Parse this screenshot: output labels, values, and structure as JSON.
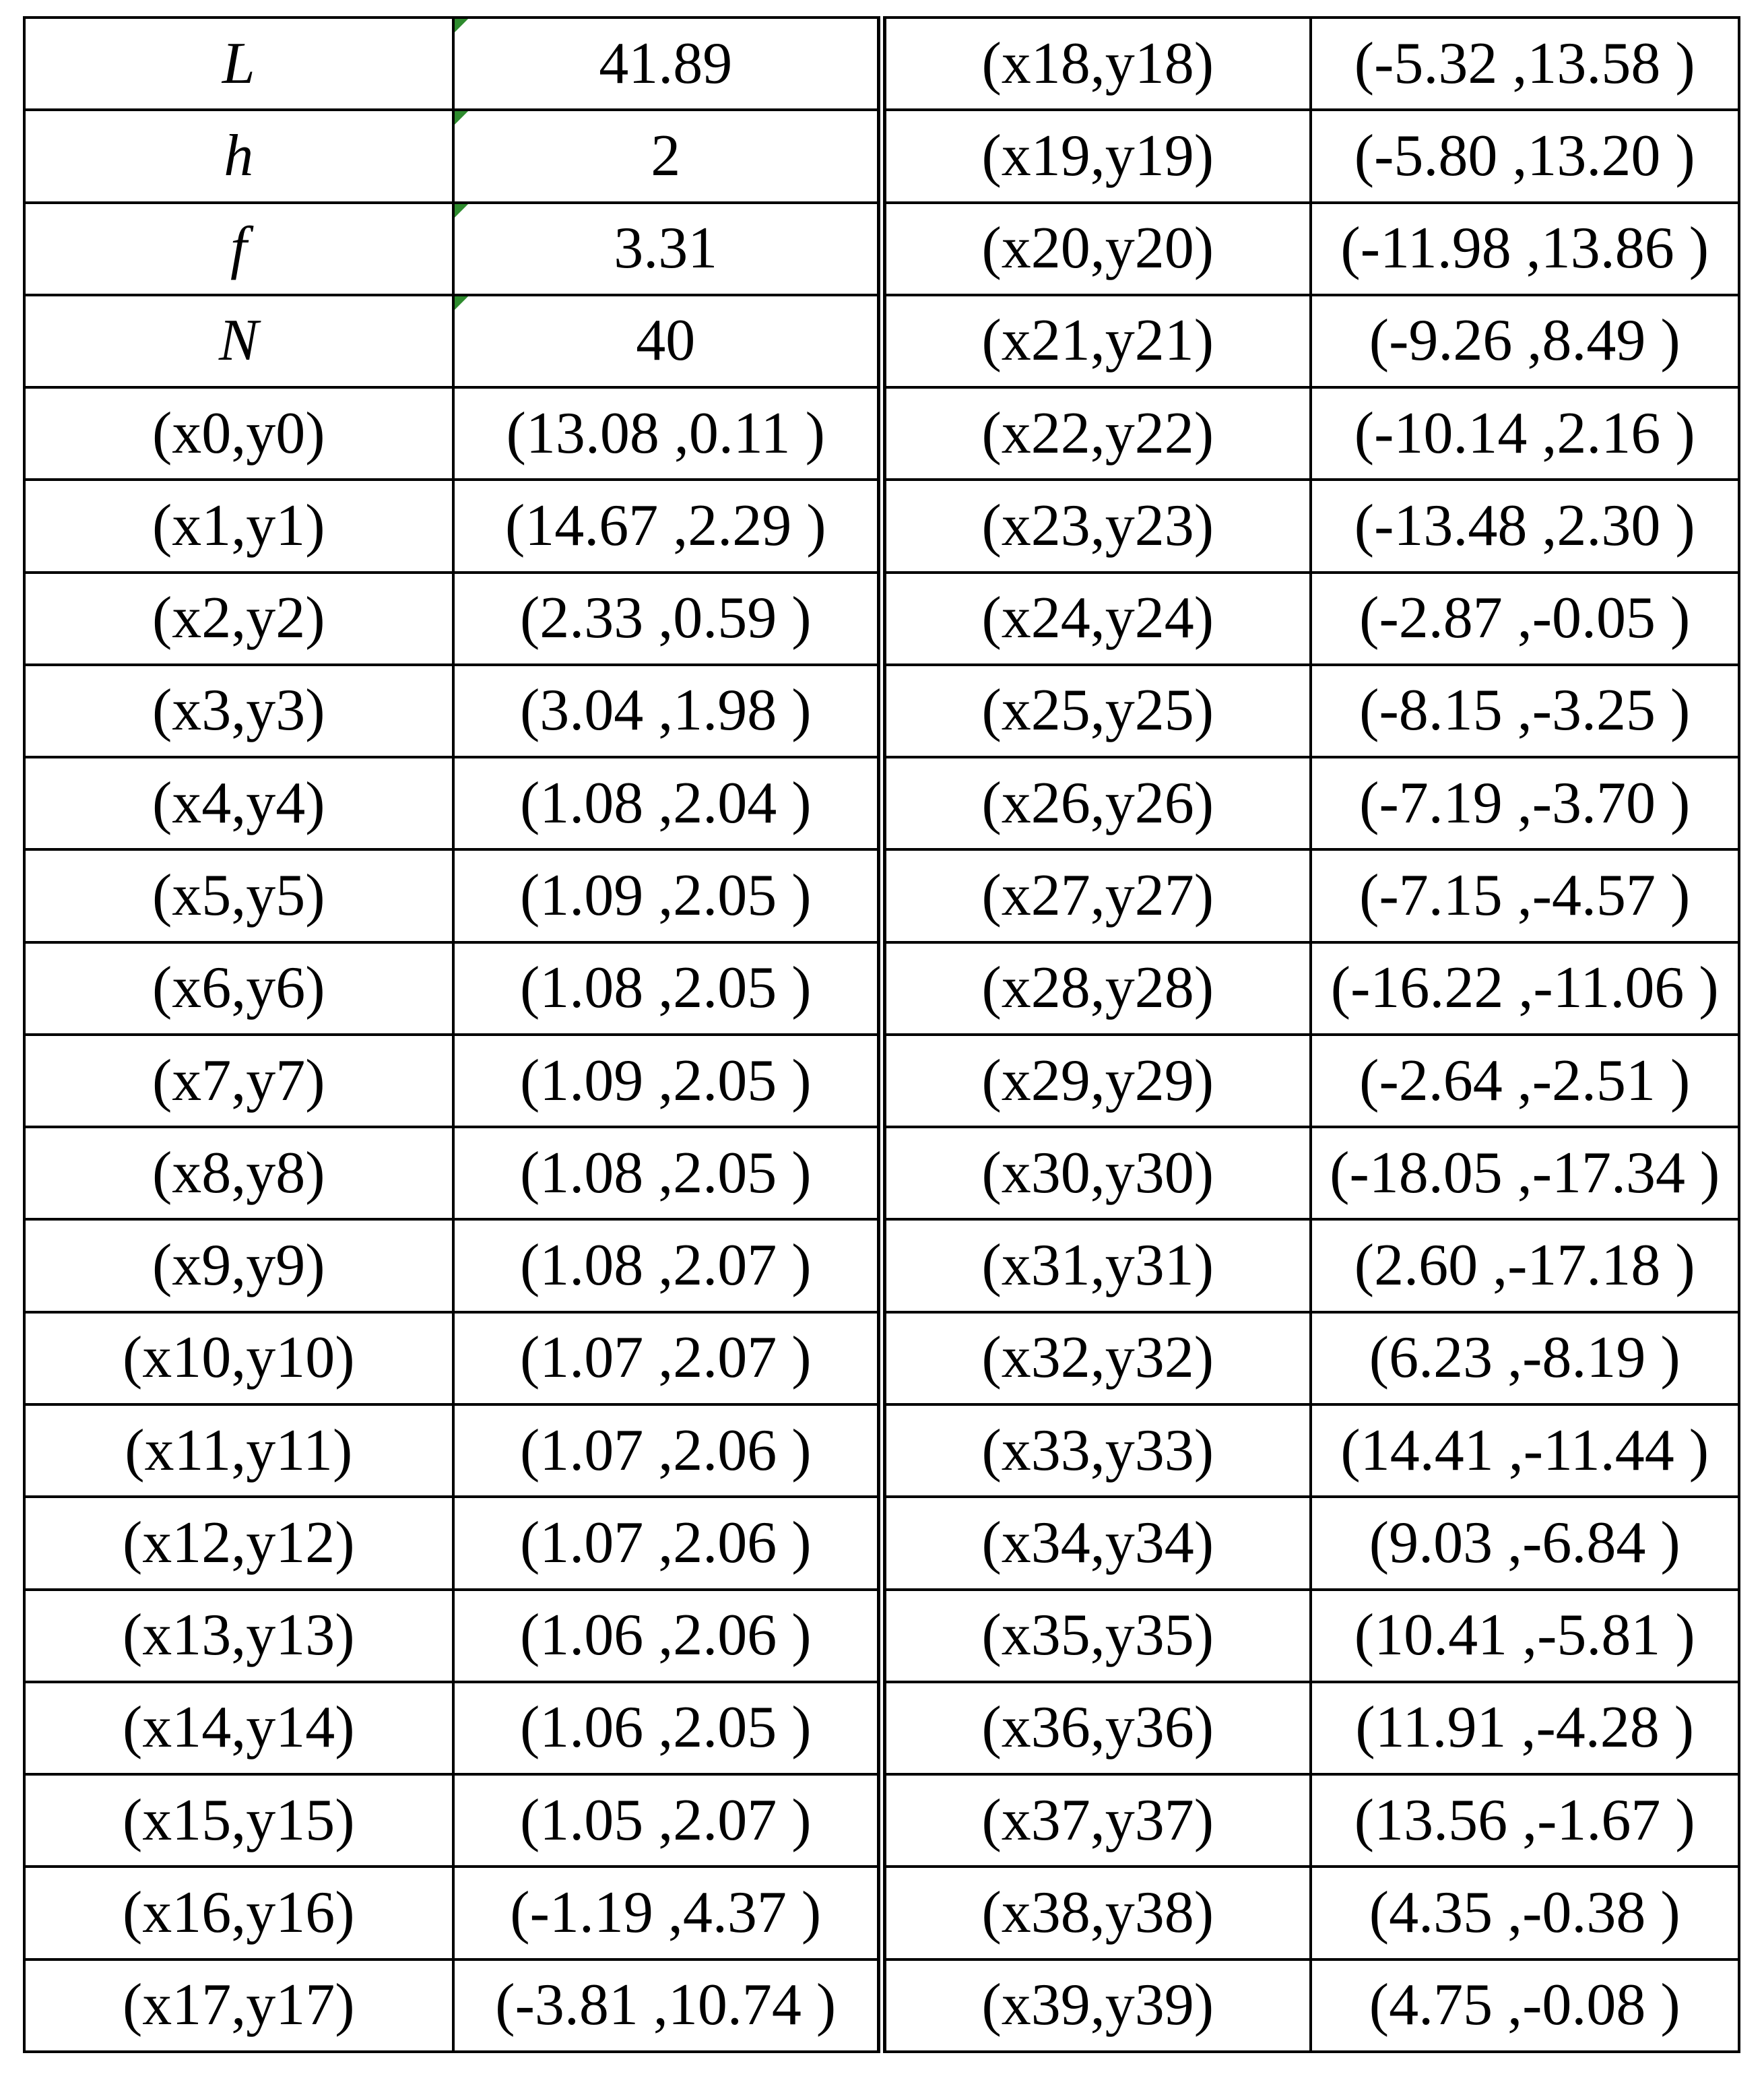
{
  "table": {
    "rows": [
      [
        "L",
        "41.89",
        "(x18,y18)",
        "(-5.32 ,13.58 )"
      ],
      [
        "h",
        "2",
        "(x19,y19)",
        "(-5.80 ,13.20 )"
      ],
      [
        "f",
        "3.31",
        "(x20,y20)",
        "(-11.98 ,13.86 )"
      ],
      [
        "N",
        "40",
        "(x21,y21)",
        "(-9.26 ,8.49 )"
      ],
      [
        "(x0,y0)",
        "(13.08 ,0.11 )",
        "(x22,y22)",
        "(-10.14 ,2.16 )"
      ],
      [
        "(x1,y1)",
        "(14.67 ,2.29 )",
        "(x23,y23)",
        "(-13.48 ,2.30 )"
      ],
      [
        "(x2,y2)",
        "(2.33 ,0.59 )",
        "(x24,y24)",
        "(-2.87 ,-0.05 )"
      ],
      [
        "(x3,y3)",
        "(3.04 ,1.98 )",
        "(x25,y25)",
        "(-8.15 ,-3.25 )"
      ],
      [
        "(x4,y4)",
        "(1.08 ,2.04 )",
        "(x26,y26)",
        "(-7.19 ,-3.70 )"
      ],
      [
        "(x5,y5)",
        "(1.09 ,2.05 )",
        "(x27,y27)",
        "(-7.15 ,-4.57 )"
      ],
      [
        "(x6,y6)",
        "(1.08 ,2.05 )",
        "(x28,y28)",
        "(-16.22 ,-11.06 )"
      ],
      [
        "(x7,y7)",
        "(1.09 ,2.05 )",
        "(x29,y29)",
        "(-2.64 ,-2.51 )"
      ],
      [
        "(x8,y8)",
        "(1.08 ,2.05 )",
        "(x30,y30)",
        "(-18.05 ,-17.34 )"
      ],
      [
        "(x9,y9)",
        "(1.08 ,2.07 )",
        "(x31,y31)",
        "(2.60 ,-17.18 )"
      ],
      [
        "(x10,y10)",
        "(1.07 ,2.07 )",
        "(x32,y32)",
        "(6.23 ,-8.19 )"
      ],
      [
        "(x11,y11)",
        "(1.07 ,2.06 )",
        "(x33,y33)",
        "(14.41 ,-11.44 )"
      ],
      [
        "(x12,y12)",
        "(1.07 ,2.06 )",
        "(x34,y34)",
        "(9.03 ,-6.84 )"
      ],
      [
        "(x13,y13)",
        "(1.06 ,2.06 )",
        "(x35,y35)",
        "(10.41 ,-5.81 )"
      ],
      [
        "(x14,y14)",
        "(1.06 ,2.05 )",
        "(x36,y36)",
        "(11.91 ,-4.28 )"
      ],
      [
        "(x15,y15)",
        "(1.05 ,2.07 )",
        "(x37,y37)",
        "(13.56 ,-1.67 )"
      ],
      [
        "(x16,y16)",
        "(-1.19 ,4.37 )",
        "(x38,y38)",
        "(4.35 ,-0.38 )"
      ],
      [
        "(x17,y17)",
        "(-3.81 ,10.74 )",
        "(x39,y39)",
        "(4.75 ,-0.08 )"
      ]
    ]
  }
}
